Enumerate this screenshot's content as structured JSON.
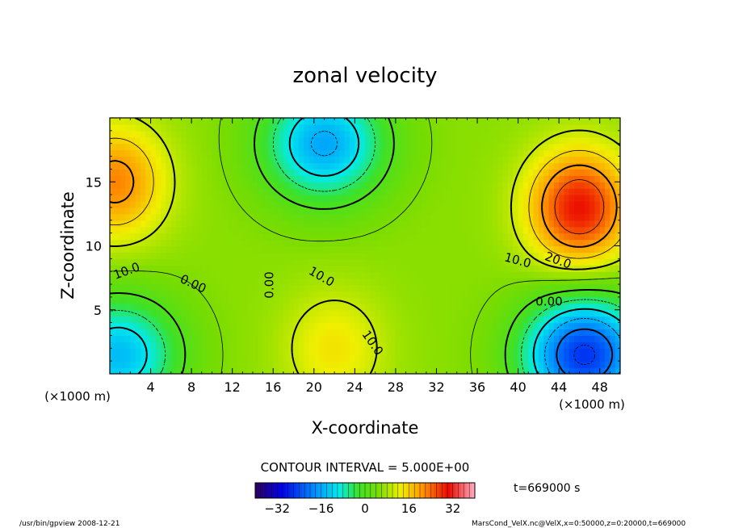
{
  "chart_data": {
    "type": "heatmap",
    "title": "zonal velocity",
    "xlabel": "X-coordinate",
    "ylabel": "Z-coordinate",
    "x_unit": "(×1000 m)",
    "y_unit": "(×1000 m)",
    "xlim": [
      0,
      50
    ],
    "ylim": [
      0,
      20
    ],
    "x_ticks": [
      4,
      8,
      12,
      16,
      20,
      24,
      28,
      32,
      36,
      40,
      44,
      48
    ],
    "y_ticks": [
      5,
      10,
      15
    ],
    "contour_interval": "CONTOUR INTERVAL = 5.000E+00",
    "time_label": "t=669000 s",
    "colorbar": {
      "min": -40,
      "max": 40,
      "ticks": [
        -32,
        -16,
        0,
        16,
        32
      ]
    },
    "contour_labels": [
      "10.0",
      "0.00",
      "0.00",
      "10.0",
      "10.0",
      "10.0",
      "20.0",
      "0.00"
    ],
    "features": [
      {
        "name": "positive core",
        "x": 46,
        "z": 13,
        "value": 30
      },
      {
        "name": "positive left edge",
        "x": 0.5,
        "z": 15,
        "value": 22
      },
      {
        "name": "negative lower-right",
        "x": 46.5,
        "z": 1.5,
        "value": -26
      },
      {
        "name": "negative upper-center",
        "x": 21,
        "z": 18,
        "value": -16
      },
      {
        "name": "negative lower-left",
        "x": 0.8,
        "z": 1.5,
        "value": -14
      },
      {
        "name": "positive lower-center",
        "x": 22,
        "z": 2,
        "value": 14
      }
    ]
  },
  "footer": {
    "left": "/usr/bin/gpview   2008-12-21",
    "right": "MarsCond_VelX.nc@VelX,x=0:50000,z=0:20000,t=669000"
  }
}
